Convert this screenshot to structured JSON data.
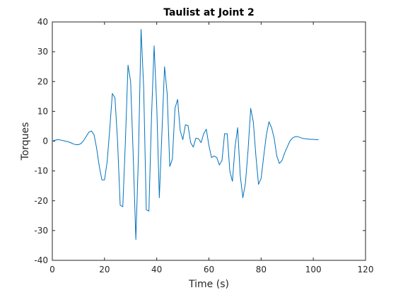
{
  "chart_data": {
    "type": "line",
    "title": "Taulist at Joint 2",
    "xlabel": "Time (s)",
    "ylabel": "Torques",
    "xlim": [
      0,
      120
    ],
    "ylim": [
      -40,
      40
    ],
    "xticks": [
      0,
      20,
      40,
      60,
      80,
      100,
      120
    ],
    "yticks": [
      -40,
      -30,
      -20,
      -10,
      0,
      10,
      20,
      30,
      40
    ],
    "grid": false,
    "legend": "none",
    "series_color": "#0072BD",
    "series": [
      {
        "x": [
          0,
          1,
          2,
          3,
          4,
          5,
          6,
          7,
          8,
          9,
          10,
          11,
          12,
          13,
          14,
          15,
          16,
          17,
          18,
          19,
          20,
          21,
          22,
          23,
          24,
          25,
          26,
          27,
          28,
          29,
          30,
          31,
          32,
          33,
          34,
          35,
          36,
          37,
          38,
          39,
          40,
          41,
          42,
          43,
          44,
          45,
          46,
          47,
          48,
          49,
          50,
          51,
          52,
          53,
          54,
          55,
          56,
          57,
          58,
          59,
          60,
          61,
          62,
          63,
          64,
          65,
          66,
          67,
          68,
          69,
          70,
          71,
          72,
          73,
          74,
          75,
          76,
          77,
          78,
          79,
          80,
          81,
          82,
          83,
          84,
          85,
          86,
          87,
          88,
          89,
          90,
          91,
          92,
          93,
          94,
          95,
          96,
          97,
          98,
          99,
          100,
          101,
          102
        ],
        "y": [
          0,
          0.3,
          0.5,
          0.4,
          0.2,
          0,
          -0.2,
          -0.5,
          -0.9,
          -1.2,
          -1.2,
          -0.8,
          0.2,
          1.6,
          3,
          3.4,
          2.1,
          -2.5,
          -8.5,
          -13,
          -13,
          -7,
          4,
          16,
          14.5,
          0,
          -21.5,
          -22,
          0,
          25.5,
          20,
          -5,
          -33,
          -5,
          37.5,
          18,
          -23,
          -23.5,
          8,
          32,
          12,
          -19,
          3,
          25,
          16,
          -8.5,
          -6,
          11,
          14,
          3.5,
          0.5,
          5.5,
          5.2,
          -0.5,
          -2,
          1,
          0.8,
          -0.5,
          2.5,
          4,
          -1.5,
          -5.5,
          -5,
          -5.5,
          -8,
          -6.5,
          2.5,
          2.5,
          -10,
          -13.5,
          -2,
          4.5,
          -11.5,
          -19,
          -14,
          -3,
          11,
          6.5,
          -5,
          -14.5,
          -12.5,
          -5,
          2,
          6.5,
          4.5,
          1,
          -5,
          -7.5,
          -6.5,
          -4,
          -2,
          0,
          1,
          1.5,
          1.5,
          1.2,
          0.9,
          0.8,
          0.7,
          0.6,
          0.6,
          0.5,
          0.5
        ]
      }
    ]
  }
}
